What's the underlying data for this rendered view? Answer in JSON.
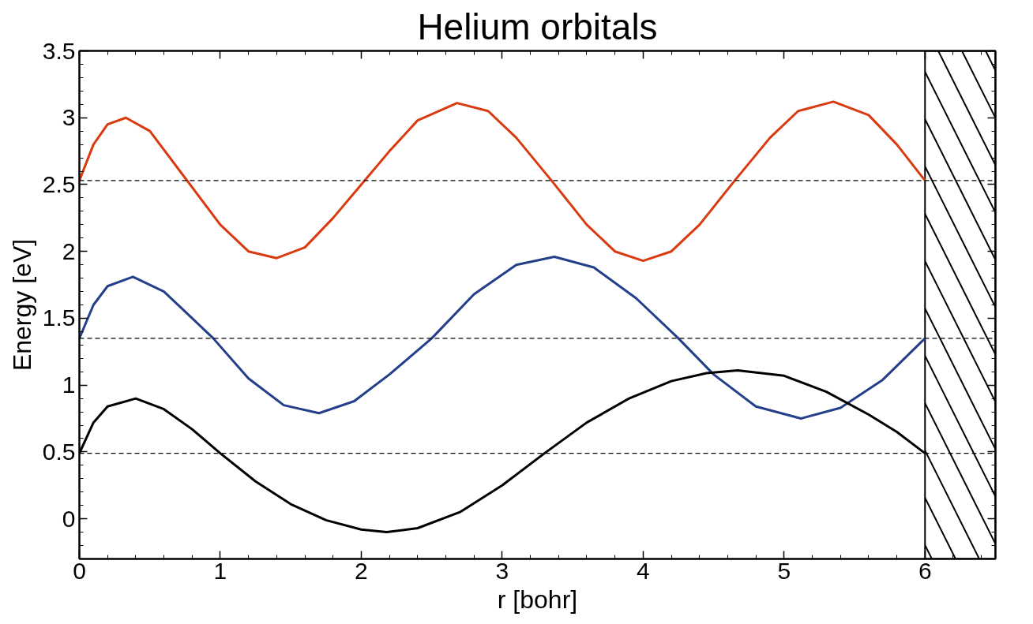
{
  "chart_data": {
    "type": "line",
    "title": "Helium orbitals",
    "xlabel": "r [bohr]",
    "ylabel": "Energy [eV]",
    "xlim": [
      0,
      6.5
    ],
    "ylim": [
      -0.3,
      3.5
    ],
    "xticks": [
      0,
      1,
      2,
      3,
      4,
      5,
      6
    ],
    "yticks": [
      0,
      0.5,
      1,
      1.5,
      2,
      2.5,
      3,
      3.5
    ],
    "grid": false,
    "line_style": "solid",
    "marker": "none",
    "series": [
      {
        "color": "#d93a0f",
        "x": [
          0,
          0.1,
          0.2,
          0.33,
          0.5,
          0.75,
          1.0,
          1.2,
          1.4,
          1.6,
          1.8,
          2.0,
          2.2,
          2.4,
          2.68,
          2.9,
          3.1,
          3.35,
          3.6,
          3.8,
          4.0,
          4.2,
          4.4,
          4.65,
          4.9,
          5.1,
          5.35,
          5.6,
          5.8,
          6.0
        ],
        "values": [
          2.53,
          2.8,
          2.95,
          3.0,
          2.9,
          2.55,
          2.2,
          2.0,
          1.95,
          2.03,
          2.25,
          2.5,
          2.75,
          2.98,
          3.11,
          3.05,
          2.85,
          2.53,
          2.2,
          2.0,
          1.93,
          2.0,
          2.2,
          2.53,
          2.85,
          3.05,
          3.12,
          3.02,
          2.8,
          2.53
        ]
      },
      {
        "color": "#233f8a",
        "x": [
          0,
          0.1,
          0.2,
          0.38,
          0.6,
          0.8,
          0.95,
          1.2,
          1.45,
          1.7,
          1.95,
          2.2,
          2.5,
          2.8,
          3.1,
          3.37,
          3.65,
          3.95,
          4.25,
          4.5,
          4.8,
          5.12,
          5.4,
          5.7,
          6.0
        ],
        "values": [
          1.35,
          1.6,
          1.74,
          1.81,
          1.7,
          1.5,
          1.35,
          1.05,
          0.85,
          0.79,
          0.88,
          1.08,
          1.35,
          1.68,
          1.9,
          1.96,
          1.88,
          1.65,
          1.35,
          1.08,
          0.84,
          0.75,
          0.83,
          1.04,
          1.35
        ]
      },
      {
        "color": "#000000",
        "x": [
          0,
          0.1,
          0.2,
          0.4,
          0.6,
          0.8,
          1.0,
          1.25,
          1.5,
          1.75,
          2.0,
          2.18,
          2.4,
          2.7,
          3.0,
          3.3,
          3.6,
          3.9,
          4.2,
          4.45,
          4.67,
          5.0,
          5.3,
          5.6,
          5.8,
          6.0
        ],
        "values": [
          0.49,
          0.72,
          0.84,
          0.9,
          0.82,
          0.67,
          0.49,
          0.28,
          0.11,
          -0.01,
          -0.08,
          -0.1,
          -0.07,
          0.05,
          0.25,
          0.49,
          0.72,
          0.9,
          1.03,
          1.09,
          1.11,
          1.07,
          0.95,
          0.78,
          0.65,
          0.49
        ]
      }
    ],
    "ref_lines": [
      {
        "axis": "y",
        "value": 0.49,
        "color": "#000000",
        "line_style": "dashed"
      },
      {
        "axis": "y",
        "value": 1.35,
        "color": "#000000",
        "line_style": "dashed"
      },
      {
        "axis": "y",
        "value": 2.53,
        "color": "#000000",
        "line_style": "dashed"
      }
    ],
    "bands": [
      {
        "axis": "x",
        "from": 6,
        "to": 6.5,
        "color": "#000000"
      }
    ]
  }
}
